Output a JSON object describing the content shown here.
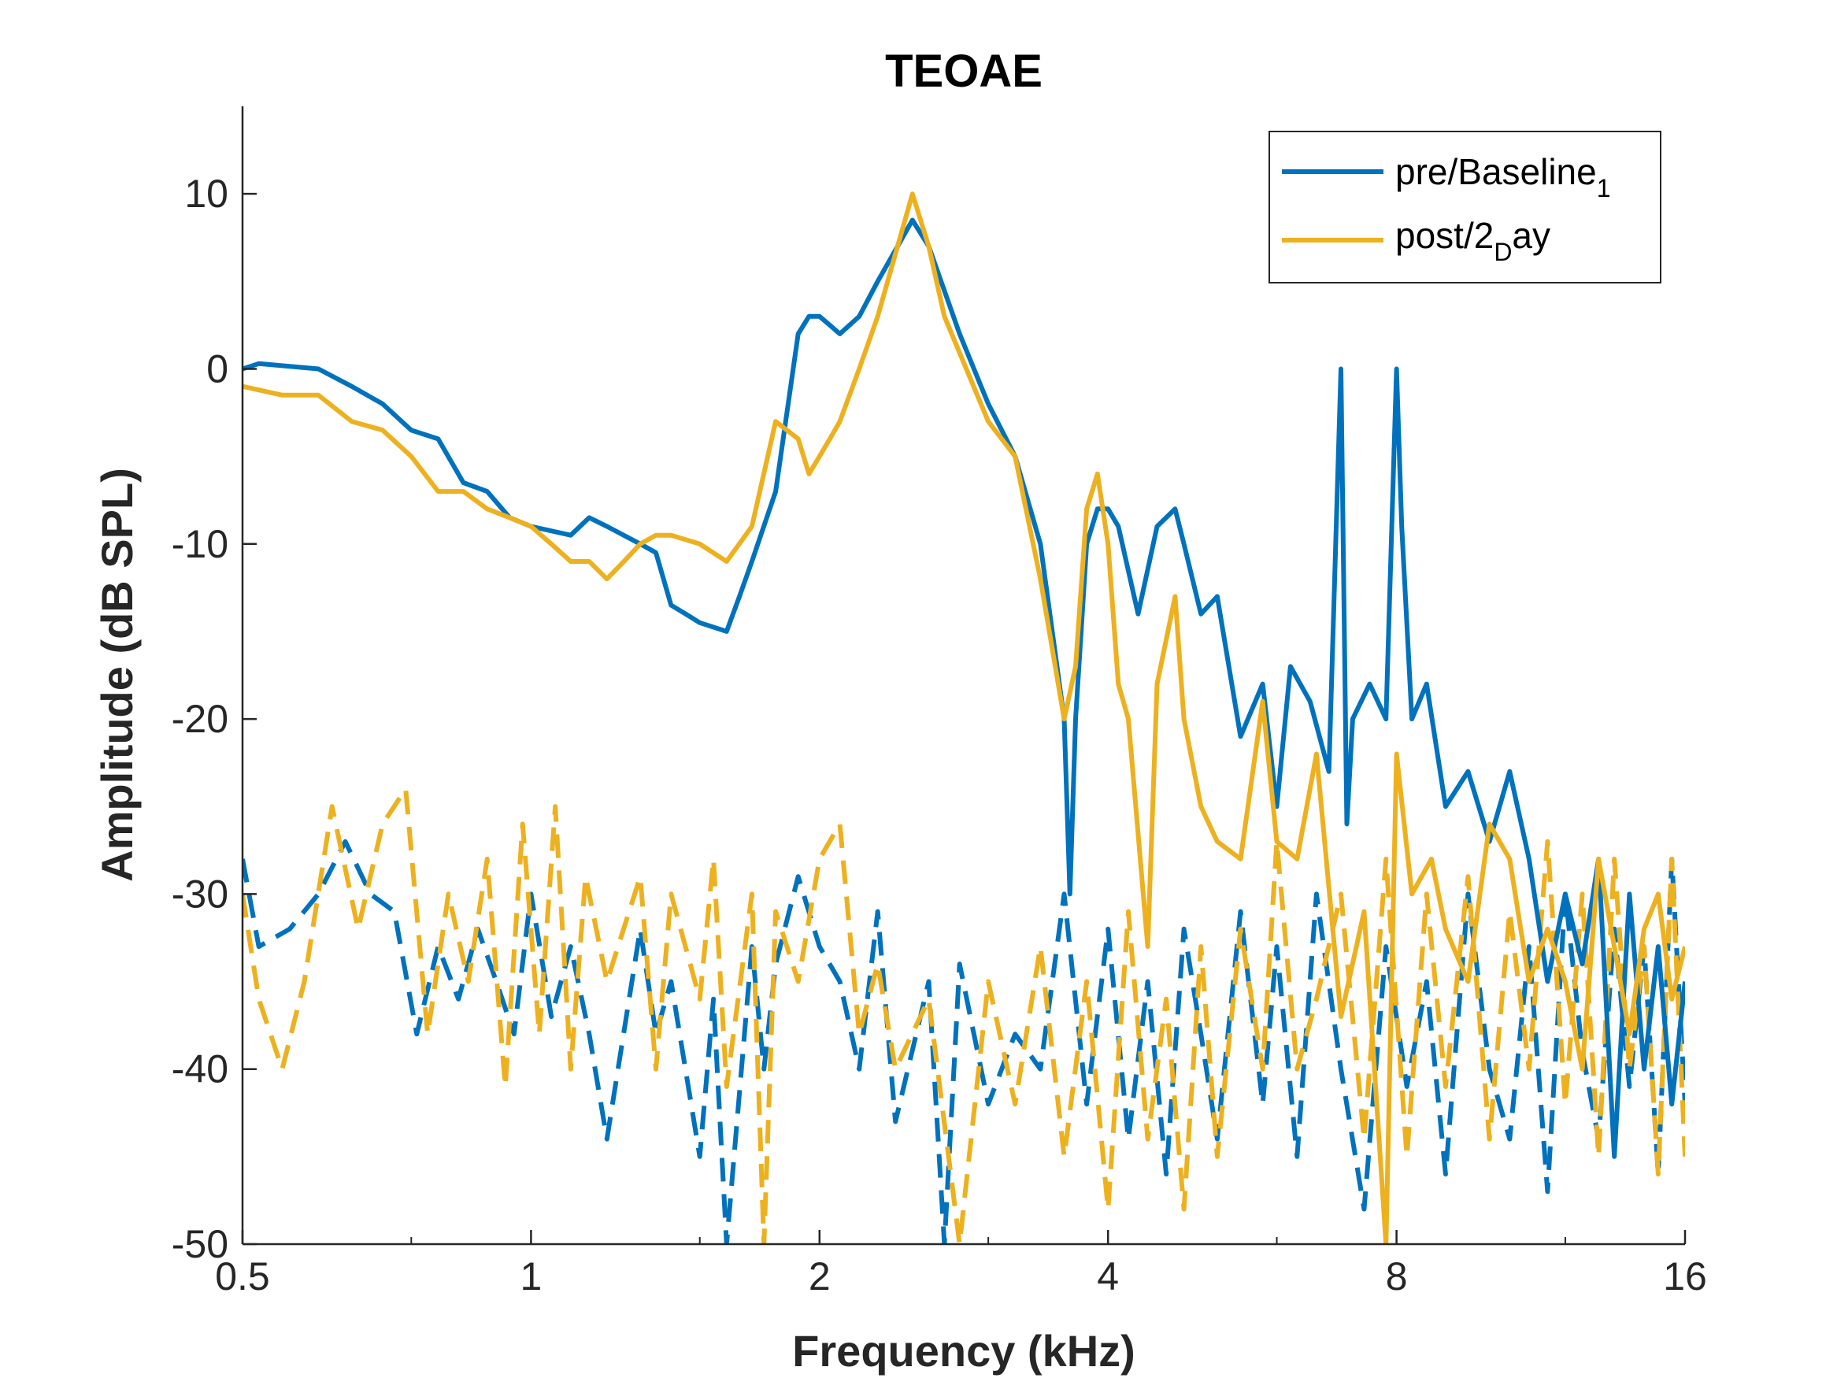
{
  "chart_data": {
    "type": "line",
    "title": "TEOAE",
    "xlabel": "Frequency (kHz)",
    "ylabel": "Amplitude (dB SPL)",
    "x_scale": "log2",
    "xlim": [
      0.5,
      16
    ],
    "ylim": [
      -50,
      15
    ],
    "x_ticks": [
      0.5,
      1,
      2,
      4,
      8,
      16
    ],
    "x_tick_labels": [
      "0.5",
      "1",
      "2",
      "4",
      "8",
      "16"
    ],
    "y_ticks": [
      10,
      0,
      -10,
      -20,
      -30,
      -40,
      -50
    ],
    "y_tick_labels": [
      "10",
      "0",
      "-10",
      "-20",
      "-30",
      "-40",
      "-50"
    ],
    "grid": false,
    "legend_position": "top-right",
    "series": [
      {
        "name": "pre/Baseline",
        "name_subscript": "1",
        "color": "#0072BD",
        "style": "solid",
        "x": [
          0.5,
          0.52,
          0.6,
          0.65,
          0.7,
          0.75,
          0.8,
          0.85,
          0.9,
          0.95,
          1.0,
          1.1,
          1.15,
          1.2,
          1.3,
          1.35,
          1.4,
          1.45,
          1.5,
          1.6,
          1.65,
          1.7,
          1.8,
          1.9,
          1.95,
          2.0,
          2.05,
          2.1,
          2.2,
          2.3,
          2.5,
          2.6,
          2.8,
          3.0,
          3.2,
          3.4,
          3.6,
          3.65,
          3.7,
          3.8,
          3.9,
          4.0,
          4.1,
          4.3,
          4.5,
          4.7,
          4.8,
          5.0,
          5.2,
          5.5,
          5.8,
          6.0,
          6.2,
          6.5,
          6.8,
          7.0,
          7.1,
          7.2,
          7.5,
          7.8,
          8.0,
          8.1,
          8.3,
          8.6,
          9.0,
          9.5,
          10.0,
          10.5,
          11.0,
          11.5,
          12.0,
          12.5,
          13.0,
          13.5,
          14.0,
          14.5,
          15.0,
          15.5,
          16.0
        ],
        "y": [
          0,
          0.3,
          0,
          -1,
          -2,
          -3.5,
          -4,
          -6.5,
          -7,
          -8.5,
          -9,
          -9.5,
          -8.5,
          -9,
          -10,
          -10.5,
          -13.5,
          -14,
          -14.5,
          -15,
          -13,
          -11,
          -7,
          2,
          3,
          3,
          2.5,
          2,
          3,
          5,
          8.5,
          7,
          2,
          -2,
          -5,
          -10,
          -20,
          -30,
          -20,
          -10,
          -8,
          -8,
          -9,
          -14,
          -9,
          -8,
          -10,
          -14,
          -13,
          -21,
          -18,
          -25,
          -17,
          -19,
          -23,
          0,
          -26,
          -20,
          -18,
          -20,
          0,
          -9,
          -20,
          -18,
          -25,
          -23,
          -27,
          -23,
          -28,
          -35,
          -30,
          -34,
          -28,
          -45,
          -30,
          -40,
          -33,
          -42,
          -35
        ]
      },
      {
        "name": "post/2",
        "name_subscript": "D",
        "name_suffix": "ay",
        "color": "#EDB120",
        "style": "solid",
        "x": [
          0.5,
          0.55,
          0.6,
          0.65,
          0.7,
          0.75,
          0.8,
          0.85,
          0.9,
          0.95,
          1.0,
          1.05,
          1.1,
          1.15,
          1.2,
          1.25,
          1.3,
          1.35,
          1.4,
          1.5,
          1.6,
          1.7,
          1.8,
          1.9,
          1.95,
          2.0,
          2.05,
          2.1,
          2.2,
          2.3,
          2.5,
          2.6,
          2.7,
          3.0,
          3.2,
          3.4,
          3.6,
          3.7,
          3.8,
          3.9,
          4.0,
          4.1,
          4.2,
          4.4,
          4.5,
          4.7,
          4.8,
          5.0,
          5.2,
          5.5,
          5.8,
          6.0,
          6.3,
          6.6,
          7.0,
          7.4,
          7.8,
          8.0,
          8.3,
          8.7,
          9.0,
          9.5,
          10.0,
          10.5,
          11.0,
          11.5,
          12.0,
          12.5,
          13.0,
          13.5,
          14.0,
          14.5,
          15.0,
          15.5,
          16.0
        ],
        "y": [
          -1,
          -1.5,
          -1.5,
          -3,
          -3.5,
          -5,
          -7,
          -7,
          -8,
          -8.5,
          -9,
          -10,
          -11,
          -11,
          -12,
          -11,
          -10,
          -9.5,
          -9.5,
          -10,
          -11,
          -9,
          -3,
          -4,
          -6,
          -5,
          -4,
          -3,
          0,
          3,
          10,
          7,
          3,
          -3,
          -5,
          -12,
          -20,
          -17,
          -8,
          -6,
          -10,
          -18,
          -20,
          -33,
          -18,
          -13,
          -20,
          -25,
          -27,
          -28,
          -19,
          -27,
          -28,
          -22,
          -37,
          -31,
          -50,
          -22,
          -30,
          -28,
          -32,
          -35,
          -26,
          -28,
          -35,
          -32,
          -35,
          -40,
          -28,
          -33,
          -38,
          -32,
          -30,
          -36,
          -33
        ]
      },
      {
        "name": "",
        "color": "#0072BD",
        "style": "dashed",
        "x": [
          0.5,
          0.52,
          0.56,
          0.6,
          0.64,
          0.68,
          0.72,
          0.76,
          0.8,
          0.84,
          0.88,
          0.92,
          0.96,
          1.0,
          1.05,
          1.1,
          1.15,
          1.2,
          1.3,
          1.35,
          1.4,
          1.5,
          1.55,
          1.6,
          1.7,
          1.75,
          1.8,
          1.9,
          2.0,
          2.1,
          2.2,
          2.3,
          2.4,
          2.6,
          2.7,
          2.8,
          3.0,
          3.2,
          3.4,
          3.6,
          3.8,
          4.0,
          4.2,
          4.4,
          4.6,
          4.8,
          5.0,
          5.2,
          5.5,
          5.8,
          6.0,
          6.3,
          6.6,
          7.0,
          7.4,
          7.8,
          8.2,
          8.6,
          9.0,
          9.5,
          10.0,
          10.5,
          11.0,
          11.5,
          12.0,
          12.5,
          13.0,
          13.5,
          14.0,
          14.5,
          15.0,
          15.5,
          16.0
        ],
        "y": [
          -28,
          -33,
          -32,
          -30,
          -27,
          -30,
          -31,
          -38,
          -33,
          -36,
          -32,
          -35,
          -38,
          -30,
          -37,
          -33,
          -38,
          -44,
          -32,
          -38,
          -35,
          -45,
          -36,
          -50,
          -33,
          -40,
          -34,
          -29,
          -33,
          -35,
          -40,
          -31,
          -43,
          -35,
          -50,
          -34,
          -42,
          -38,
          -40,
          -30,
          -42,
          -32,
          -44,
          -35,
          -46,
          -32,
          -38,
          -44,
          -31,
          -42,
          -33,
          -45,
          -30,
          -40,
          -48,
          -33,
          -41,
          -35,
          -46,
          -30,
          -40,
          -44,
          -33,
          -47,
          -30,
          -39,
          -44,
          -32,
          -41,
          -33,
          -46,
          -28,
          -42
        ]
      },
      {
        "name": "",
        "color": "#EDB120",
        "style": "dashed",
        "x": [
          0.5,
          0.52,
          0.55,
          0.58,
          0.62,
          0.66,
          0.7,
          0.74,
          0.78,
          0.82,
          0.86,
          0.9,
          0.94,
          0.98,
          1.02,
          1.06,
          1.1,
          1.14,
          1.2,
          1.3,
          1.35,
          1.4,
          1.5,
          1.55,
          1.6,
          1.7,
          1.75,
          1.8,
          1.9,
          2.0,
          2.1,
          2.2,
          2.3,
          2.4,
          2.6,
          2.8,
          3.0,
          3.2,
          3.4,
          3.6,
          3.8,
          4.0,
          4.2,
          4.4,
          4.6,
          4.8,
          5.0,
          5.2,
          5.5,
          5.8,
          6.0,
          6.3,
          6.6,
          7.0,
          7.4,
          7.8,
          8.2,
          8.6,
          9.0,
          9.5,
          10.0,
          10.5,
          11.0,
          11.5,
          12.0,
          12.5,
          13.0,
          13.5,
          14.0,
          14.5,
          15.0,
          15.5,
          16.0
        ],
        "y": [
          -30,
          -36,
          -40,
          -35,
          -25,
          -32,
          -26,
          -24,
          -38,
          -30,
          -35,
          -28,
          -41,
          -26,
          -38,
          -25,
          -40,
          -29,
          -35,
          -29,
          -40,
          -30,
          -36,
          -28,
          -41,
          -30,
          -50,
          -31,
          -35,
          -28,
          -26,
          -38,
          -34,
          -40,
          -36,
          -50,
          -35,
          -42,
          -33,
          -45,
          -35,
          -48,
          -31,
          -44,
          -36,
          -48,
          -33,
          -45,
          -32,
          -40,
          -27,
          -40,
          -36,
          -30,
          -44,
          -28,
          -45,
          -30,
          -41,
          -29,
          -44,
          -31,
          -40,
          -27,
          -42,
          -30,
          -45,
          -28,
          -40,
          -33,
          -46,
          -28,
          -45
        ]
      }
    ]
  }
}
